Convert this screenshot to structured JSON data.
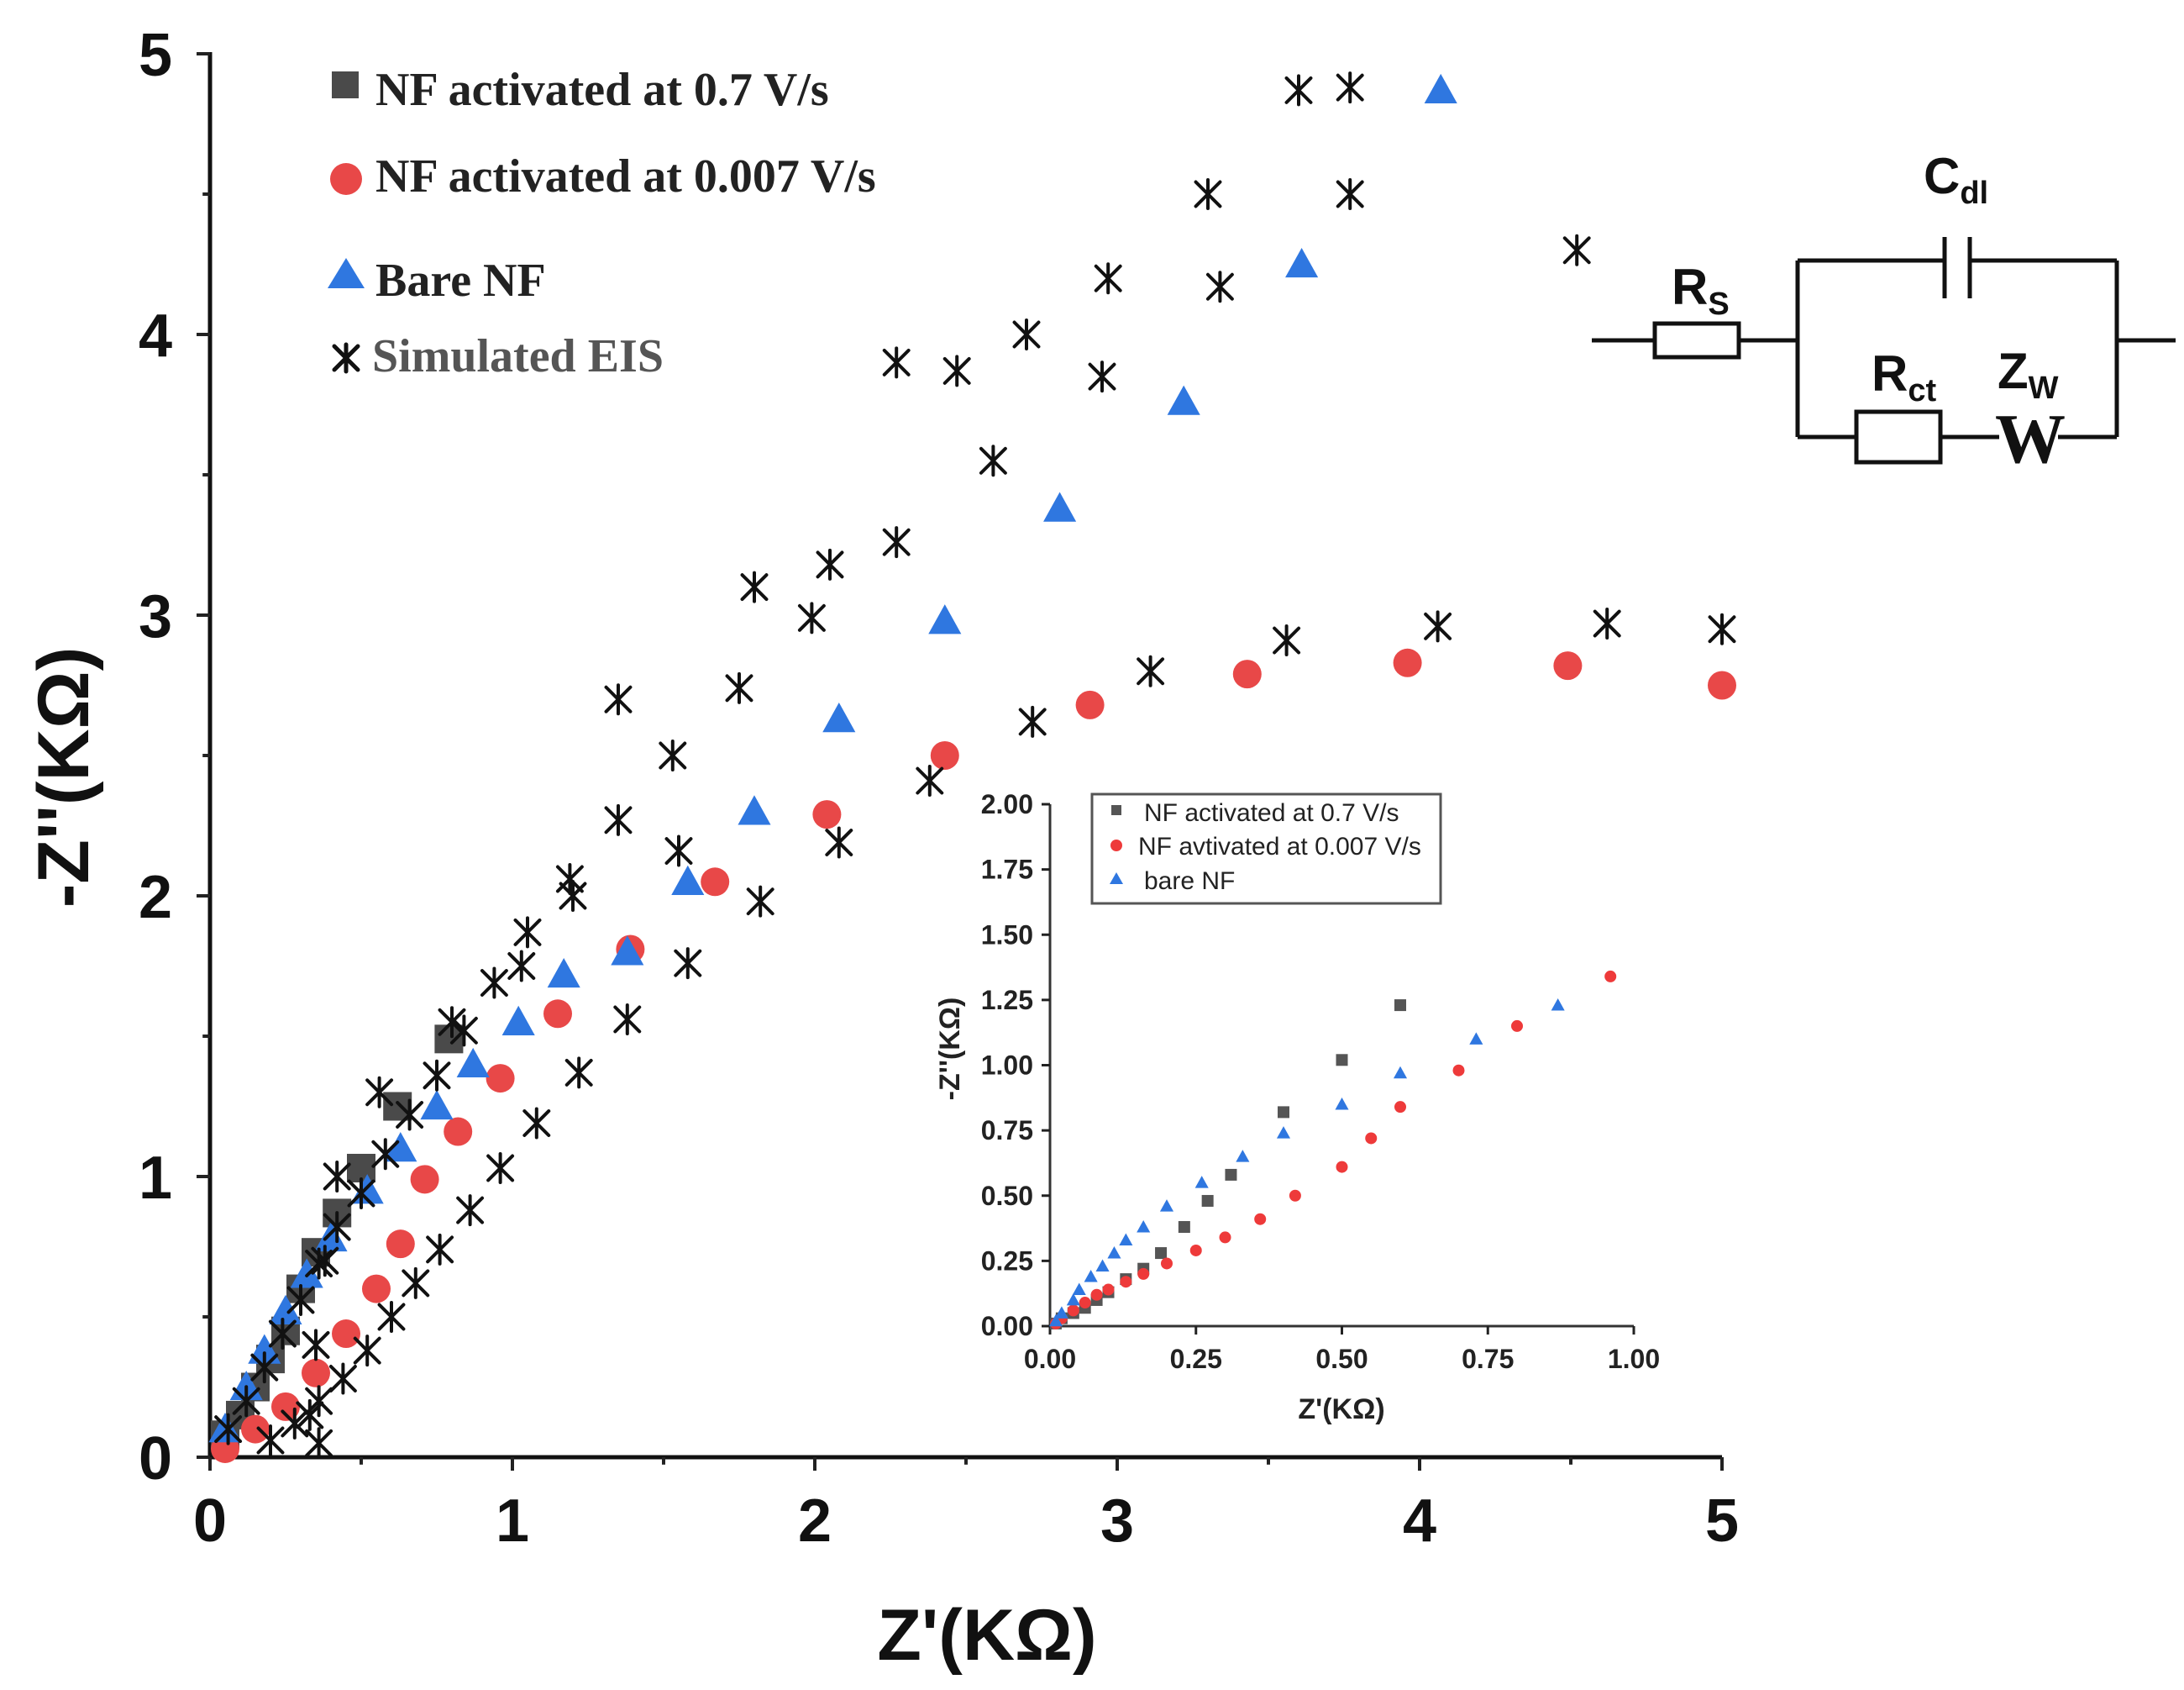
{
  "chart_data": [
    {
      "type": "scatter",
      "name": "main-nyquist",
      "xlabel": "Z'(KΩ)",
      "ylabel": "-Z''(KΩ)",
      "xlim": [
        0,
        5
      ],
      "ylim": [
        0,
        5
      ],
      "xticks": [
        "0",
        "1",
        "2",
        "3",
        "4",
        "5"
      ],
      "yticks": [
        "0",
        "1",
        "2",
        "3",
        "4",
        "5"
      ],
      "series": [
        {
          "name": "NF activated at 0.7 V/s",
          "marker": "square",
          "color": "#4a4a4a",
          "x": [
            0.05,
            0.1,
            0.15,
            0.2,
            0.25,
            0.3,
            0.35,
            0.42,
            0.5,
            0.62,
            0.79
          ],
          "y": [
            0.08,
            0.15,
            0.25,
            0.35,
            0.45,
            0.6,
            0.73,
            0.87,
            1.03,
            1.25,
            1.49
          ]
        },
        {
          "name": "NF activated at 0.007 V/s",
          "marker": "circle",
          "color": "#e84848",
          "x": [
            0.05,
            0.15,
            0.25,
            0.35,
            0.45,
            0.55,
            0.63,
            0.71,
            0.82,
            0.96,
            1.15,
            1.39,
            1.67,
            2.04,
            2.43,
            2.91,
            3.43,
            3.96,
            4.49,
            5.0
          ],
          "y": [
            0.03,
            0.1,
            0.18,
            0.3,
            0.44,
            0.6,
            0.76,
            0.99,
            1.16,
            1.35,
            1.58,
            1.81,
            2.05,
            2.29,
            2.5,
            2.68,
            2.79,
            2.83,
            2.82,
            2.75
          ]
        },
        {
          "name": "Bare NF",
          "marker": "triangle",
          "color": "#2f77e0",
          "x": [
            0.05,
            0.12,
            0.18,
            0.25,
            0.32,
            0.4,
            0.52,
            0.63,
            0.75,
            0.87,
            1.02,
            1.17,
            1.38,
            1.58,
            1.8,
            2.08,
            2.43,
            2.81,
            3.22,
            3.61,
            4.07
          ],
          "y": [
            0.1,
            0.25,
            0.38,
            0.52,
            0.65,
            0.78,
            0.95,
            1.1,
            1.25,
            1.4,
            1.55,
            1.72,
            1.8,
            2.05,
            2.3,
            2.63,
            2.98,
            3.38,
            3.76,
            4.25,
            4.87
          ]
        },
        {
          "name": "Simulated EIS",
          "marker": "asterisk",
          "color": "#111111",
          "x": [
            0.06,
            0.12,
            0.18,
            0.24,
            0.3,
            0.36,
            0.42,
            0.5,
            0.58,
            0.66,
            0.75,
            0.84,
            0.94,
            1.05,
            1.19,
            1.35,
            1.53,
            1.75,
            1.99,
            2.27,
            2.59,
            2.95,
            3.34,
            3.77,
            0.2,
            0.28,
            0.36,
            0.44,
            0.52,
            0.6,
            0.68,
            0.76,
            0.86,
            0.96,
            1.08,
            1.22,
            1.38,
            1.58,
            1.82,
            2.08,
            2.38,
            2.72,
            3.11,
            3.56,
            4.06,
            4.62,
            5.0,
            4.52,
            3.6,
            3.77,
            3.3,
            2.97,
            2.7,
            2.47,
            2.27,
            2.05,
            1.8,
            1.55,
            1.35,
            1.2,
            1.03,
            0.8,
            0.56,
            0.42,
            0.38,
            0.35,
            0.33,
            0.36
          ],
          "y": [
            0.1,
            0.2,
            0.32,
            0.44,
            0.56,
            0.69,
            0.82,
            0.94,
            1.08,
            1.22,
            1.36,
            1.52,
            1.69,
            1.87,
            2.06,
            2.27,
            2.5,
            2.74,
            2.99,
            3.26,
            3.55,
            3.85,
            4.17,
            4.5,
            0.06,
            0.12,
            0.2,
            0.28,
            0.38,
            0.5,
            0.62,
            0.74,
            0.88,
            1.03,
            1.19,
            1.37,
            1.56,
            1.76,
            1.98,
            2.19,
            2.41,
            2.62,
            2.8,
            2.91,
            2.96,
            2.97,
            2.95,
            4.3,
            4.87,
            4.88,
            4.5,
            4.2,
            4.0,
            3.87,
            3.9,
            3.18,
            3.1,
            2.16,
            2.7,
            2.0,
            1.75,
            1.55,
            1.3,
            1.0,
            0.7,
            0.4,
            0.15,
            0.05
          ]
        }
      ],
      "legend": [
        {
          "label": "NF activated at 0.7 V/s",
          "marker": "square"
        },
        {
          "label": "NF activated at 0.007 V/s",
          "marker": "circle"
        },
        {
          "label": "Bare NF",
          "marker": "triangle"
        },
        {
          "label": "Simulated EIS",
          "marker": "asterisk"
        }
      ],
      "legend_position": "top-left"
    },
    {
      "type": "scatter",
      "name": "inset-nyquist",
      "xlabel": "Z'(KΩ)",
      "ylabel": "-Z''(KΩ)",
      "xlim": [
        0,
        1
      ],
      "ylim": [
        0,
        2
      ],
      "xticks": [
        "0.00",
        "0.25",
        "0.50",
        "0.75",
        "1.00"
      ],
      "yticks": [
        "0.00",
        "0.25",
        "0.50",
        "0.75",
        "1.00",
        "1.25",
        "1.50",
        "1.75",
        "2.00"
      ],
      "series": [
        {
          "name": "NF activated at 0.7 V/s",
          "marker": "square",
          "color": "#555555",
          "x": [
            0.01,
            0.02,
            0.04,
            0.06,
            0.08,
            0.1,
            0.13,
            0.16,
            0.19,
            0.23,
            0.27,
            0.31,
            0.4,
            0.5,
            0.6
          ],
          "y": [
            0.01,
            0.03,
            0.05,
            0.07,
            0.1,
            0.13,
            0.18,
            0.22,
            0.28,
            0.38,
            0.48,
            0.58,
            0.82,
            1.02,
            1.23
          ]
        },
        {
          "name": "NF avtivated at 0.007 V/s",
          "marker": "circle",
          "color": "#ee3a3a",
          "x": [
            0.01,
            0.02,
            0.04,
            0.06,
            0.08,
            0.1,
            0.13,
            0.16,
            0.2,
            0.25,
            0.3,
            0.36,
            0.42,
            0.5,
            0.55,
            0.6,
            0.7,
            0.8,
            0.96
          ],
          "y": [
            0.01,
            0.03,
            0.06,
            0.09,
            0.12,
            0.14,
            0.17,
            0.2,
            0.24,
            0.29,
            0.34,
            0.41,
            0.5,
            0.61,
            0.72,
            0.84,
            0.98,
            1.15,
            1.34
          ]
        },
        {
          "name": "bare NF",
          "marker": "triangle",
          "color": "#2f77e0",
          "x": [
            0.01,
            0.02,
            0.04,
            0.05,
            0.07,
            0.09,
            0.11,
            0.13,
            0.16,
            0.2,
            0.26,
            0.33,
            0.4,
            0.5,
            0.6,
            0.73,
            0.87
          ],
          "y": [
            0.02,
            0.05,
            0.1,
            0.14,
            0.19,
            0.23,
            0.28,
            0.33,
            0.38,
            0.46,
            0.55,
            0.65,
            0.74,
            0.85,
            0.97,
            1.1,
            1.23
          ]
        }
      ],
      "legend": [
        {
          "label": "NF activated at 0.7 V/s",
          "marker": "square"
        },
        {
          "label": "NF avtivated at 0.007 V/s",
          "marker": "circle"
        },
        {
          "label": "bare NF",
          "marker": "triangle"
        }
      ],
      "legend_position": "top-left"
    }
  ],
  "circuit": {
    "rs_label": "R",
    "rs_sub": "S",
    "cdl_label": "C",
    "cdl_sub": "dl",
    "rct_label": "R",
    "rct_sub": "ct",
    "zw_label": "Z",
    "zw_sub": "W",
    "warburg_symbol": "W"
  }
}
